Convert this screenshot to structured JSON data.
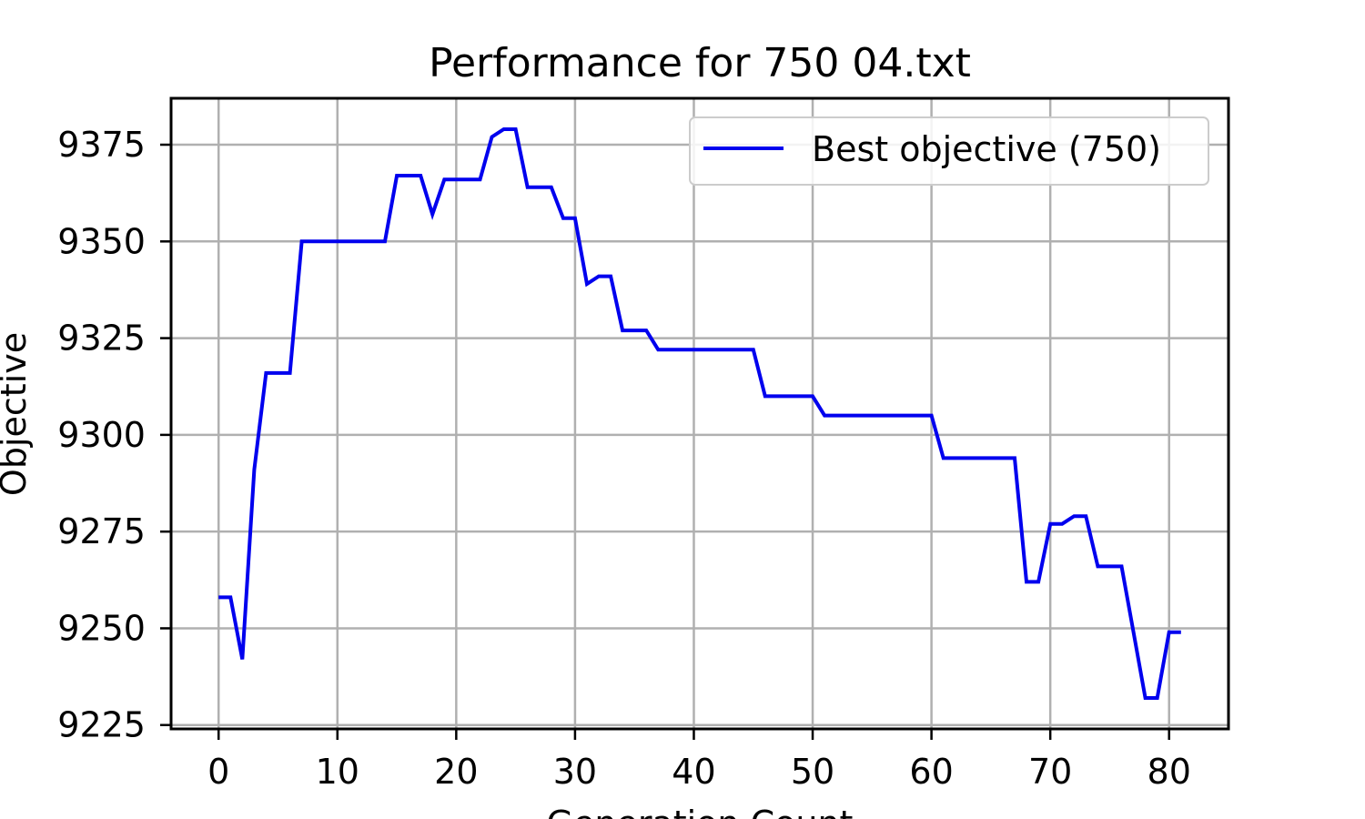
{
  "chart_data": {
    "type": "line",
    "title": "Performance for 750 04.txt",
    "xlabel": "Generation Count",
    "ylabel": "Objective",
    "xlim": [
      -4,
      85
    ],
    "ylim": [
      9224,
      9387
    ],
    "xticks": [
      0,
      10,
      20,
      30,
      40,
      50,
      60,
      70,
      80
    ],
    "yticks": [
      9225,
      9250,
      9275,
      9300,
      9325,
      9350,
      9375
    ],
    "grid": true,
    "legend_position": "top-right",
    "series": [
      {
        "name": "Best objective (750)",
        "color": "#0000ee",
        "x": [
          0,
          1,
          2,
          3,
          4,
          5,
          6,
          7,
          8,
          9,
          10,
          11,
          12,
          13,
          14,
          15,
          16,
          17,
          18,
          19,
          20,
          21,
          22,
          23,
          24,
          25,
          26,
          27,
          28,
          29,
          30,
          31,
          32,
          33,
          34,
          35,
          36,
          37,
          38,
          39,
          40,
          41,
          42,
          43,
          44,
          45,
          46,
          47,
          48,
          49,
          50,
          51,
          52,
          53,
          54,
          55,
          56,
          57,
          58,
          59,
          60,
          61,
          62,
          63,
          64,
          65,
          66,
          67,
          68,
          69,
          70,
          71,
          72,
          73,
          74,
          75,
          76,
          77,
          78,
          79,
          80,
          81
        ],
        "y": [
          9258,
          9258,
          9242,
          9291,
          9316,
          9316,
          9316,
          9350,
          9350,
          9350,
          9350,
          9350,
          9350,
          9350,
          9350,
          9367,
          9367,
          9367,
          9357,
          9366,
          9366,
          9366,
          9366,
          9377,
          9379,
          9379,
          9364,
          9364,
          9364,
          9356,
          9356,
          9339,
          9341,
          9341,
          9327,
          9327,
          9327,
          9322,
          9322,
          9322,
          9322,
          9322,
          9322,
          9322,
          9322,
          9322,
          9310,
          9310,
          9310,
          9310,
          9310,
          9305,
          9305,
          9305,
          9305,
          9305,
          9305,
          9305,
          9305,
          9305,
          9305,
          9294,
          9294,
          9294,
          9294,
          9294,
          9294,
          9294,
          9262,
          9262,
          9277,
          9277,
          9279,
          9279,
          9266,
          9266,
          9266,
          9249,
          9232,
          9232,
          9249,
          9249
        ]
      }
    ]
  }
}
